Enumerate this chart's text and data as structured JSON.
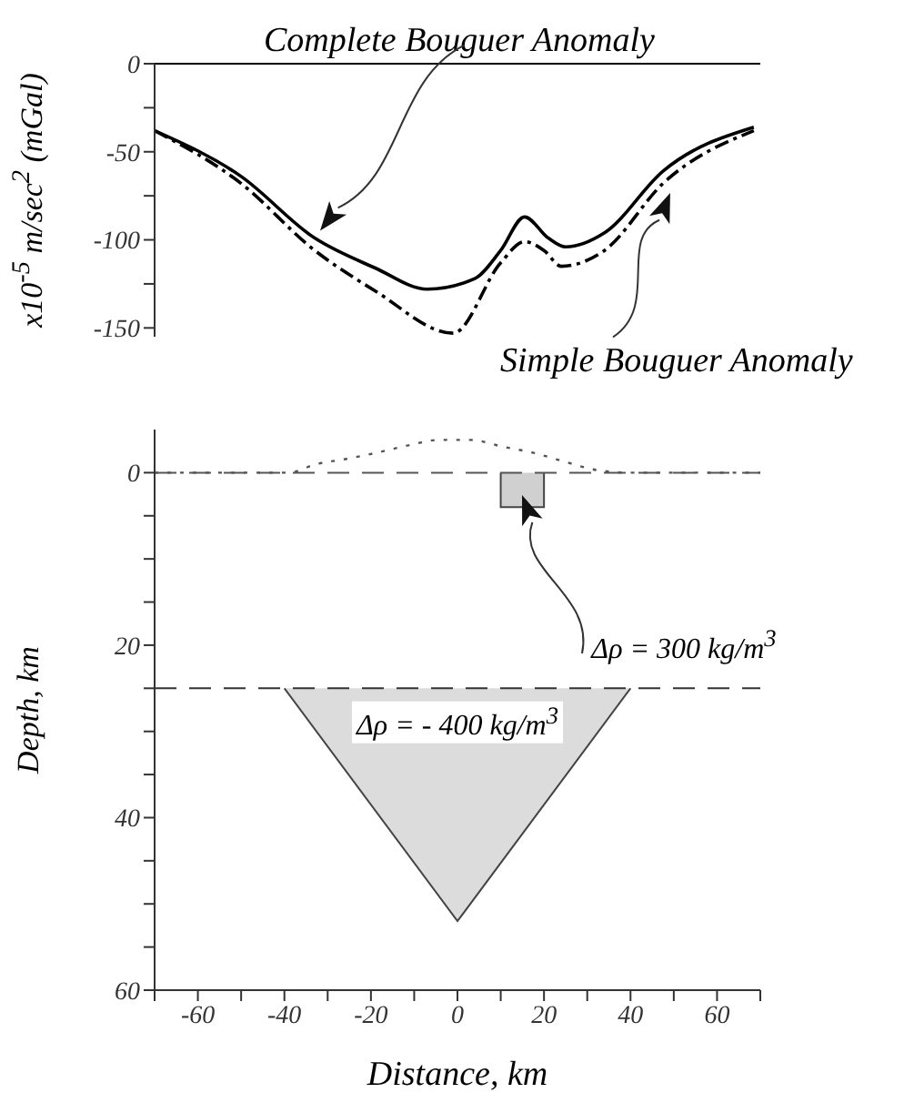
{
  "chart_data": [
    {
      "type": "line",
      "ylabel": "x10$^{-5}$ m/sec$^{2}$ (mGal)",
      "xlim": [
        -70,
        70
      ],
      "ylim": [
        -155,
        0
      ],
      "yticks": [
        0,
        {
          "value": -25,
          "label": null
        },
        -50,
        {
          "value": -75,
          "label": null
        },
        -100,
        {
          "value": -125,
          "label": null
        },
        -150
      ],
      "tick_labels": "y",
      "grid": false,
      "legend": false,
      "marker": "none",
      "ref_lines": [
        {
          "axis": "y",
          "value": 0,
          "color": "#000000",
          "line_style": "solid"
        }
      ],
      "series": [
        {
          "name": "Complete Bouguer Anomaly",
          "color": "#000000",
          "line_style": "solid",
          "x": [
            -70,
            -50,
            -33,
            -19,
            -7,
            4,
            10,
            15.5,
            21,
            25,
            34,
            47.5,
            68.5
          ],
          "values": [
            -38,
            -64,
            -99,
            -116,
            -128,
            -122,
            -106,
            -87,
            -99,
            -104,
            -96,
            -61,
            -36
          ]
        },
        {
          "name": "Simple Bouguer Anomaly",
          "color": "#000000",
          "line_style": "dashed",
          "x": [
            -70,
            -50,
            -33,
            -19,
            -1,
            10,
            15.5,
            20,
            24,
            34,
            47.5,
            68.5
          ],
          "values": [
            -38,
            -68,
            -106,
            -129,
            -153,
            -113,
            -101,
            -106,
            -115,
            -106,
            -68,
            -38
          ]
        }
      ]
    },
    {
      "type": "area",
      "xlabel": "Distance, km",
      "ylabel": "Depth, km",
      "xlim": [
        -70,
        70
      ],
      "ylim": [
        60,
        -5
      ],
      "xticks": [
        {
          "value": -70,
          "label": null
        },
        -60,
        {
          "value": -50,
          "label": null
        },
        -40,
        {
          "value": -30,
          "label": null
        },
        -20,
        {
          "value": -10,
          "label": null
        },
        0,
        {
          "value": 10,
          "label": null
        },
        20,
        {
          "value": 30,
          "label": null
        },
        40,
        {
          "value": 50,
          "label": null
        },
        60,
        {
          "value": 70,
          "label": null
        }
      ],
      "yticks": [
        0,
        {
          "value": 5,
          "label": null
        },
        {
          "value": 10,
          "label": null
        },
        {
          "value": 15,
          "label": null
        },
        20,
        {
          "value": 25,
          "label": null
        },
        {
          "value": 30,
          "label": null
        },
        {
          "value": 35,
          "label": null
        },
        40,
        {
          "value": 45,
          "label": null
        },
        {
          "value": 50,
          "label": null
        },
        {
          "value": 55,
          "label": null
        },
        60
      ],
      "grid": false,
      "legend": false,
      "ref_lines": [
        {
          "axis": "y",
          "value": 0,
          "color": "#555555",
          "line_style": "dashed"
        },
        {
          "axis": "y",
          "value": 25,
          "color": "#333333",
          "line_style": "dashed"
        }
      ],
      "annotations": [
        "Δρ = 300 kg/m$^{3}$",
        "Δρ = - 400 kg/m$^{3}$"
      ],
      "series": [
        {
          "color": "#dcdcdc",
          "x": [
            -40,
            0,
            40
          ],
          "values": [
            25,
            52,
            25
          ]
        },
        {
          "color": "#d0d0d0",
          "x": [
            10,
            10,
            20,
            20
          ],
          "values": [
            0,
            4,
            4,
            0
          ]
        },
        {
          "type": "line",
          "color": "#555555",
          "line_style": "dotted",
          "x": [
            -70,
            -39,
            -32.6,
            -25.6,
            -18.8,
            -11,
            -4.2,
            2.9,
            10.6,
            17.6,
            24.6,
            32.2,
            40,
            70
          ],
          "values": [
            0,
            0,
            -1,
            -1.6,
            -2.3,
            -3.2,
            -3.8,
            -3.8,
            -3,
            -2.3,
            -1.3,
            -0.3,
            0,
            0
          ]
        }
      ]
    }
  ]
}
